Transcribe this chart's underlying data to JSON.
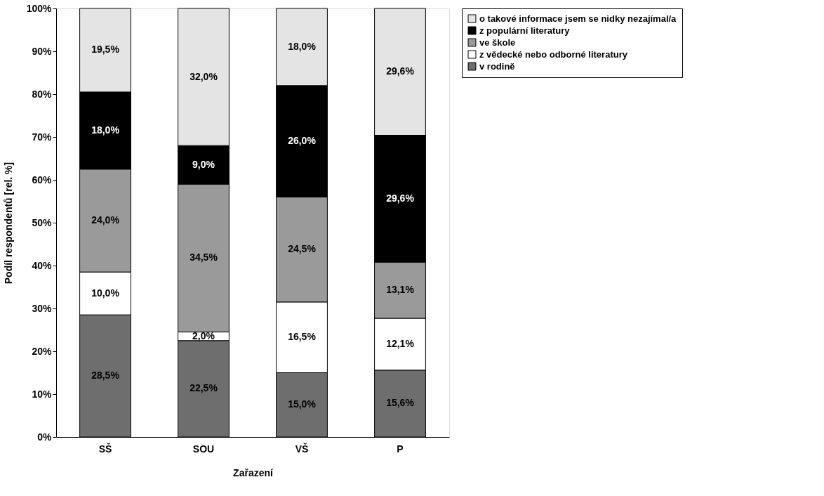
{
  "chart_data": {
    "type": "bar",
    "stacked": true,
    "xlabel": "Zařazení",
    "ylabel": "Podíl respondentů  [rel. %]",
    "categories": [
      "SŠ",
      "SOU",
      "VŠ",
      "P"
    ],
    "series": [
      {
        "name": "v rodině",
        "color": "#6e6e6e",
        "values": [
          28.5,
          22.5,
          15.0,
          15.6
        ]
      },
      {
        "name": "z vědecké nebo odborné literatury",
        "color": "#ffffff",
        "values": [
          10.0,
          2.0,
          16.5,
          12.1
        ]
      },
      {
        "name": "ve škole",
        "color": "#9a9a9a",
        "values": [
          24.0,
          34.5,
          24.5,
          13.1
        ]
      },
      {
        "name": "z populární literatury",
        "color": "#000000",
        "values": [
          18.0,
          9.0,
          26.0,
          29.6
        ]
      },
      {
        "name": "o takové informace jsem se nidky nezajímal/a",
        "color": "#e4e4e4",
        "values": [
          19.5,
          32.0,
          18.0,
          29.6
        ]
      }
    ],
    "value_labels": [
      [
        "28,5%",
        "22,5%",
        "15,0%",
        "15,6%"
      ],
      [
        "10,0%",
        "2,0%",
        "16,5%",
        "12,1%"
      ],
      [
        "24,0%",
        "34,5%",
        "24,5%",
        "13,1%"
      ],
      [
        "18,0%",
        "9,0%",
        "26,0%",
        "29,6%"
      ],
      [
        "19,5%",
        "32,0%",
        "18,0%",
        "29,6%"
      ]
    ],
    "ylim": [
      0,
      100
    ],
    "yticks": [
      {
        "value": 0,
        "label": "0%"
      },
      {
        "value": 10,
        "label": "10%"
      },
      {
        "value": 20,
        "label": "20%"
      },
      {
        "value": 30,
        "label": "30%"
      },
      {
        "value": 40,
        "label": "40%"
      },
      {
        "value": 50,
        "label": "50%"
      },
      {
        "value": 60,
        "label": "60%"
      },
      {
        "value": 70,
        "label": "70%"
      },
      {
        "value": 80,
        "label": "80%"
      },
      {
        "value": 90,
        "label": "90%"
      },
      {
        "value": 100,
        "label": "100%"
      }
    ],
    "grid": false,
    "legend": "right"
  }
}
